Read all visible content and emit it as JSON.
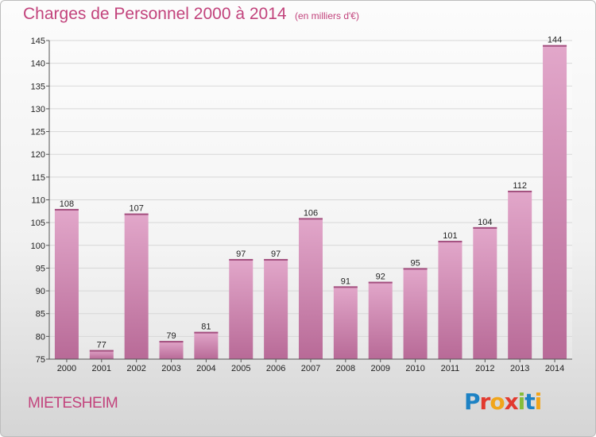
{
  "chart_data": {
    "type": "bar",
    "title": "Charges de Personnel 2000 à 2014",
    "subtitle": "(en milliers d'€)",
    "categories": [
      "2000",
      "2001",
      "2002",
      "2003",
      "2004",
      "2005",
      "2006",
      "2007",
      "2008",
      "2009",
      "2010",
      "2011",
      "2012",
      "2013",
      "2014"
    ],
    "values": [
      108,
      77,
      107,
      79,
      81,
      97,
      97,
      106,
      91,
      92,
      95,
      101,
      104,
      112,
      144
    ],
    "ylim": [
      75,
      145
    ],
    "yticks": [
      75,
      80,
      85,
      90,
      95,
      100,
      105,
      110,
      115,
      120,
      125,
      130,
      135,
      140,
      145
    ],
    "grid": true,
    "bar_color": "#d28bb3"
  },
  "footer": {
    "place": "MIETESHEIM",
    "brand": [
      {
        "ch": "P",
        "color": "#1d82c4"
      },
      {
        "ch": "r",
        "color": "#e23a2f"
      },
      {
        "ch": "o",
        "color": "#f1a51b"
      },
      {
        "ch": "x",
        "color": "#e23a2f"
      },
      {
        "ch": "i",
        "color": "#86bd3a"
      },
      {
        "ch": "t",
        "color": "#1d82c4"
      },
      {
        "ch": "i",
        "color": "#f1a51b"
      }
    ]
  }
}
